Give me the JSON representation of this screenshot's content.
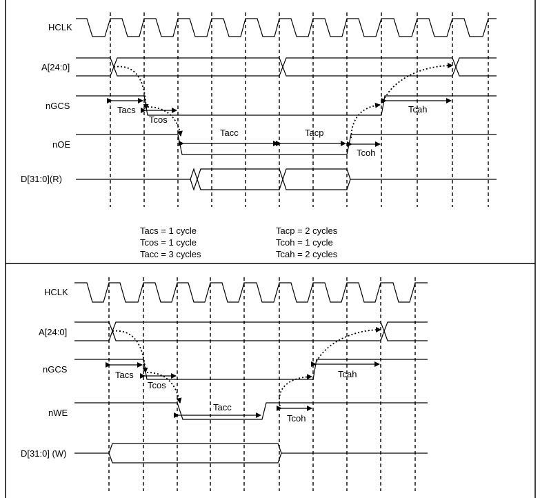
{
  "read_panel": {
    "signals": {
      "hclk": "HCLK",
      "addr": "A[24:0]",
      "ngcs": "nGCS",
      "noe": "nOE",
      "data": "D[31:0](R)"
    },
    "timings": {
      "tacs": "Tacs",
      "tcos": "Tcos",
      "tacc": "Tacc",
      "tacp": "Tacp",
      "tcoh": "Tcoh",
      "tcah": "Tcah"
    },
    "notes": {
      "tacs": "Tacs = 1 cycle",
      "tcos": "Tcos = 1 cycle",
      "tacc": "Tacc = 3 cycles",
      "tacp": "Tacp = 2 cycles",
      "tcoh": "Tcoh = 1 cycle",
      "tcah": "Tcah = 2 cycles"
    }
  },
  "write_panel": {
    "signals": {
      "hclk": "HCLK",
      "addr": "A[24:0]",
      "ngcs": "nGCS",
      "nwe": "nWE",
      "data": "D[31:0] (W)"
    },
    "timings": {
      "tacs": "Tacs",
      "tcos": "Tcos",
      "tacc": "Tacc",
      "tcoh": "Tcoh",
      "tcah": "Tcah"
    }
  }
}
